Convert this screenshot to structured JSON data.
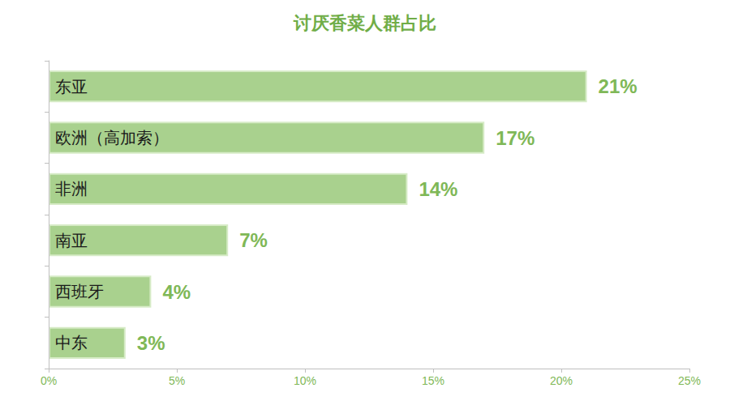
{
  "chart_data": {
    "type": "bar",
    "orientation": "horizontal",
    "title": "讨厌香菜人群占比",
    "categories": [
      "东亚",
      "欧洲（高加索）",
      "非洲",
      "南亚",
      "西班牙",
      "中东"
    ],
    "values": [
      21,
      17,
      14,
      7,
      4,
      3
    ],
    "value_labels": [
      "21%",
      "17%",
      "14%",
      "7%",
      "4%",
      "3%"
    ],
    "color": "#a9d18e",
    "xlim": [
      0,
      25
    ],
    "xticks": [
      {
        "value": 0,
        "label": "0%"
      },
      {
        "value": 5,
        "label": "5%"
      },
      {
        "value": 10,
        "label": "10%"
      },
      {
        "value": 15,
        "label": "15%"
      },
      {
        "value": 20,
        "label": "20%"
      },
      {
        "value": 25,
        "label": "25%"
      }
    ],
    "grid": false,
    "data_labels": true
  }
}
